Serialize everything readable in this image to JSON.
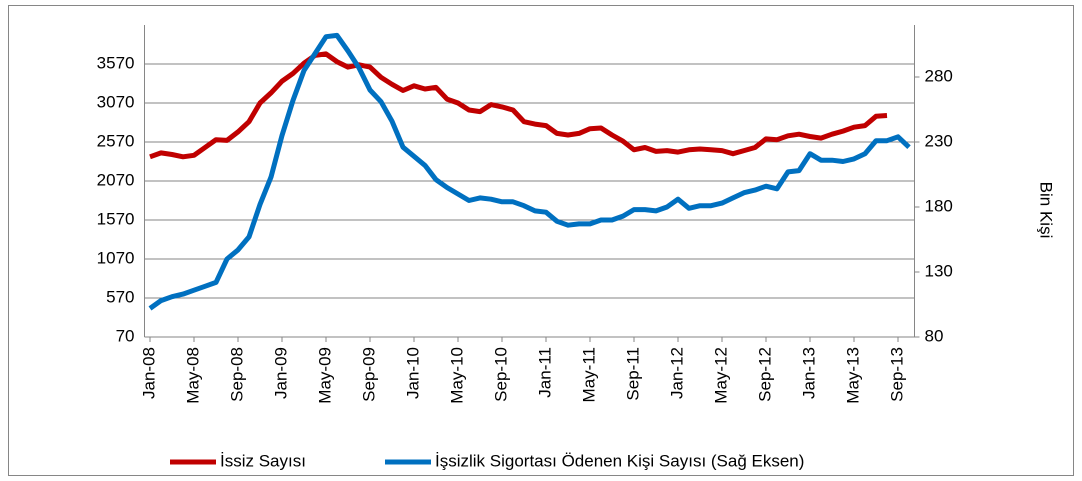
{
  "chart_data": {
    "type": "line",
    "categories": [
      "Jan-08",
      null,
      null,
      null,
      "May-08",
      null,
      null,
      null,
      "Sep-08",
      null,
      null,
      null,
      "Jan-09",
      null,
      null,
      null,
      "May-09",
      null,
      null,
      null,
      "Sep-09",
      null,
      null,
      null,
      "Jan-10",
      null,
      null,
      null,
      "May-10",
      null,
      null,
      null,
      "Sep-10",
      null,
      null,
      null,
      "Jan-11",
      null,
      null,
      null,
      "May-11",
      null,
      null,
      null,
      "Sep-11",
      null,
      null,
      null,
      "Jan-12",
      null,
      null,
      null,
      "May-12",
      null,
      null,
      null,
      "Sep-12",
      null,
      null,
      null,
      "Jan-13",
      null,
      null,
      null,
      "May-13",
      null,
      null,
      null,
      "Sep-13",
      null
    ],
    "series": [
      {
        "name": "İssiz Sayısı",
        "color": "#c00000",
        "values": [
          2380,
          2430,
          2410,
          2380,
          2400,
          2500,
          2600,
          2590,
          2700,
          2830,
          3070,
          3200,
          3350,
          3450,
          3580,
          3680,
          3700,
          3600,
          3530,
          3560,
          3530,
          3400,
          3310,
          3230,
          3290,
          3250,
          3270,
          3120,
          3070,
          2980,
          2960,
          3050,
          3020,
          2980,
          2830,
          2800,
          2780,
          2680,
          2660,
          2680,
          2740,
          2750,
          2660,
          2580,
          2470,
          2500,
          2450,
          2460,
          2440,
          2470,
          2480,
          2470,
          2460,
          2420,
          2460,
          2500,
          2610,
          2600,
          2650,
          2670,
          2640,
          2620,
          2670,
          2710,
          2760,
          2780,
          2900,
          2910,
          null,
          null
        ]
      },
      {
        "name": "İşsizlik Sigortası Ödenen Kişi Sayısı (Sağ Eksen)",
        "color": "#0070c0",
        "axis": "y2",
        "values": [
          102,
          108,
          111,
          113,
          116,
          119,
          122,
          140,
          147,
          157,
          182,
          203,
          235,
          262,
          285,
          298,
          311,
          312,
          300,
          287,
          270,
          261,
          246,
          226,
          219,
          212,
          201,
          195,
          190,
          185,
          187,
          186,
          184,
          184,
          181,
          177,
          176,
          169,
          166,
          167,
          167,
          170,
          170,
          173,
          178,
          178,
          177,
          180,
          186,
          179,
          181,
          181,
          183,
          187,
          191,
          193,
          196,
          194,
          207,
          208,
          221,
          216,
          216,
          215,
          217,
          221,
          231,
          231,
          234,
          226
        ]
      }
    ],
    "ylim": [
      70,
      4070
    ],
    "yticks": [
      70,
      570,
      1070,
      1570,
      2070,
      2570,
      3070,
      3570
    ],
    "y2lim": [
      80,
      320
    ],
    "y2ticks": [
      80,
      130,
      180,
      230,
      280
    ],
    "y2label": "Bin Kişi",
    "grid": true,
    "legend": "bottom"
  }
}
